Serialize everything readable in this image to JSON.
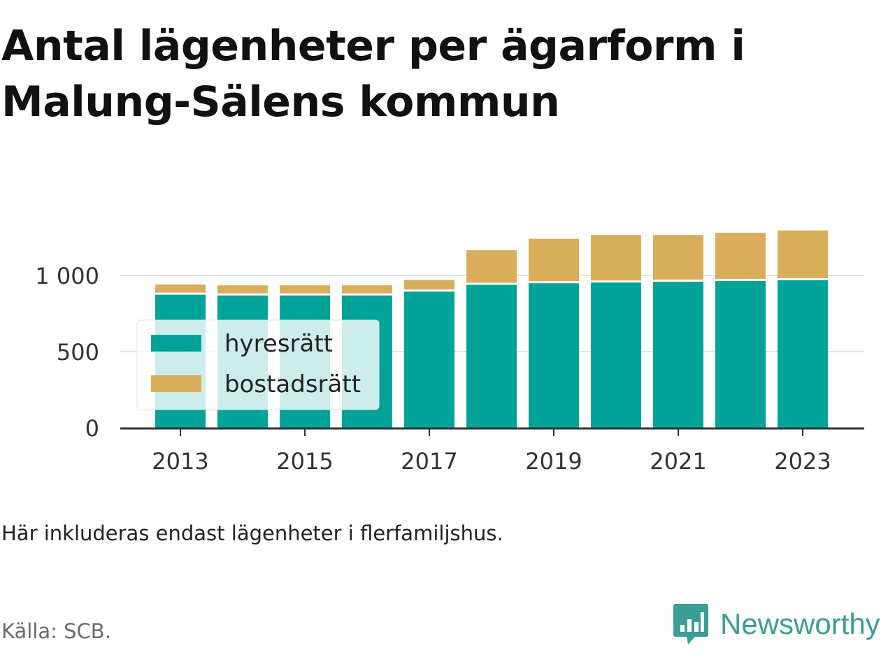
{
  "title_line1": "Antal lägenheter per ägarform i",
  "title_line2": "Malung-Sälens kommun",
  "note": "Här inkluderas endast lägenheter i flerfamiljshus.",
  "source": "Källa: SCB.",
  "brand": {
    "name": "Newsworthy",
    "color": "#3a9e96"
  },
  "chart_data": {
    "type": "bar",
    "stacked": true,
    "categories": [
      2013,
      2014,
      2015,
      2016,
      2017,
      2018,
      2019,
      2020,
      2021,
      2022,
      2023
    ],
    "series": [
      {
        "name": "hyresrätt",
        "color": "#00a398",
        "values": [
          880,
          875,
          875,
          875,
          900,
          945,
          955,
          960,
          965,
          970,
          975
        ]
      },
      {
        "name": "bostadsrätt",
        "color": "#d9ae5b",
        "values": [
          60,
          60,
          60,
          60,
          70,
          220,
          285,
          305,
          300,
          310,
          320
        ]
      }
    ],
    "ylim": [
      0,
      1300
    ],
    "yticks": [
      0,
      500,
      1000
    ],
    "ytick_labels": [
      "0",
      "500",
      "1 000"
    ],
    "xticks": [
      2013,
      2015,
      2017,
      2019,
      2021,
      2023
    ],
    "grid": "horizontal",
    "legend_position": "left-inside"
  }
}
